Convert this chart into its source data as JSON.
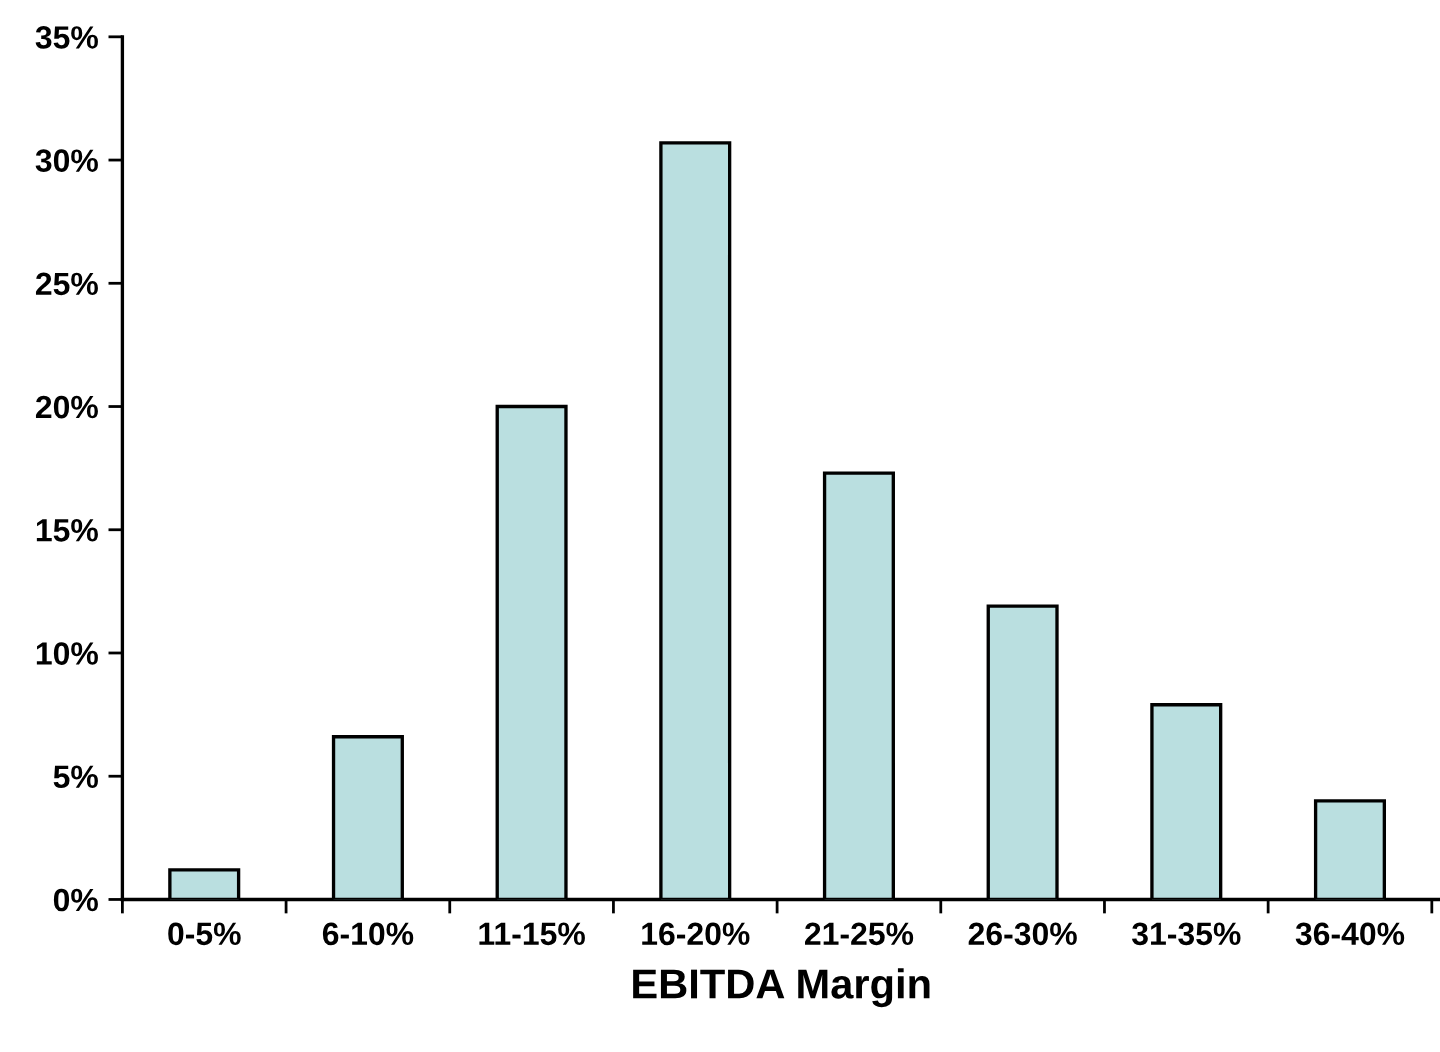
{
  "chart_data": {
    "type": "bar",
    "xlabel": "EBITDA Margin",
    "categories": [
      "0-5%",
      "6-10%",
      "11-15%",
      "16-20%",
      "21-25%",
      "26-30%",
      "31-35%",
      "36-40%"
    ],
    "values": [
      1.2,
      6.6,
      20.0,
      30.7,
      17.3,
      11.9,
      7.9,
      4.0
    ],
    "color": "#badfe0",
    "ylim": [
      0,
      35
    ],
    "yticks": [
      {
        "value": 0,
        "label": "0%"
      },
      {
        "value": 5,
        "label": "5%"
      },
      {
        "value": 10,
        "label": "10%"
      },
      {
        "value": 15,
        "label": "15%"
      },
      {
        "value": 20,
        "label": "20%"
      },
      {
        "value": 25,
        "label": "25%"
      },
      {
        "value": 30,
        "label": "30%"
      },
      {
        "value": 35,
        "label": "35%"
      }
    ],
    "grid": false
  }
}
